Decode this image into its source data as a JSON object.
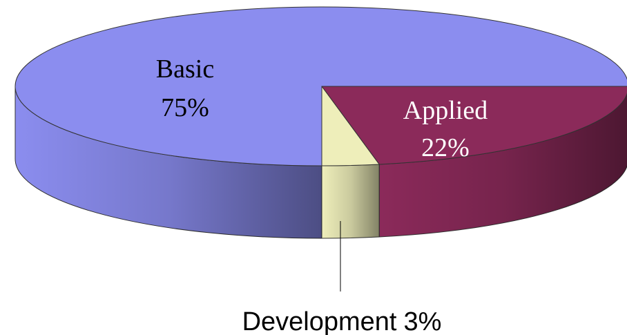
{
  "chart_data": {
    "type": "pie3d",
    "categories": [
      "Basic",
      "Applied",
      "Development"
    ],
    "values": [
      75,
      22,
      3
    ],
    "value_labels": [
      "75%",
      "22%",
      "3%"
    ],
    "colors": [
      "#8b8def",
      "#8b2a5a",
      "#eeeeba"
    ]
  }
}
